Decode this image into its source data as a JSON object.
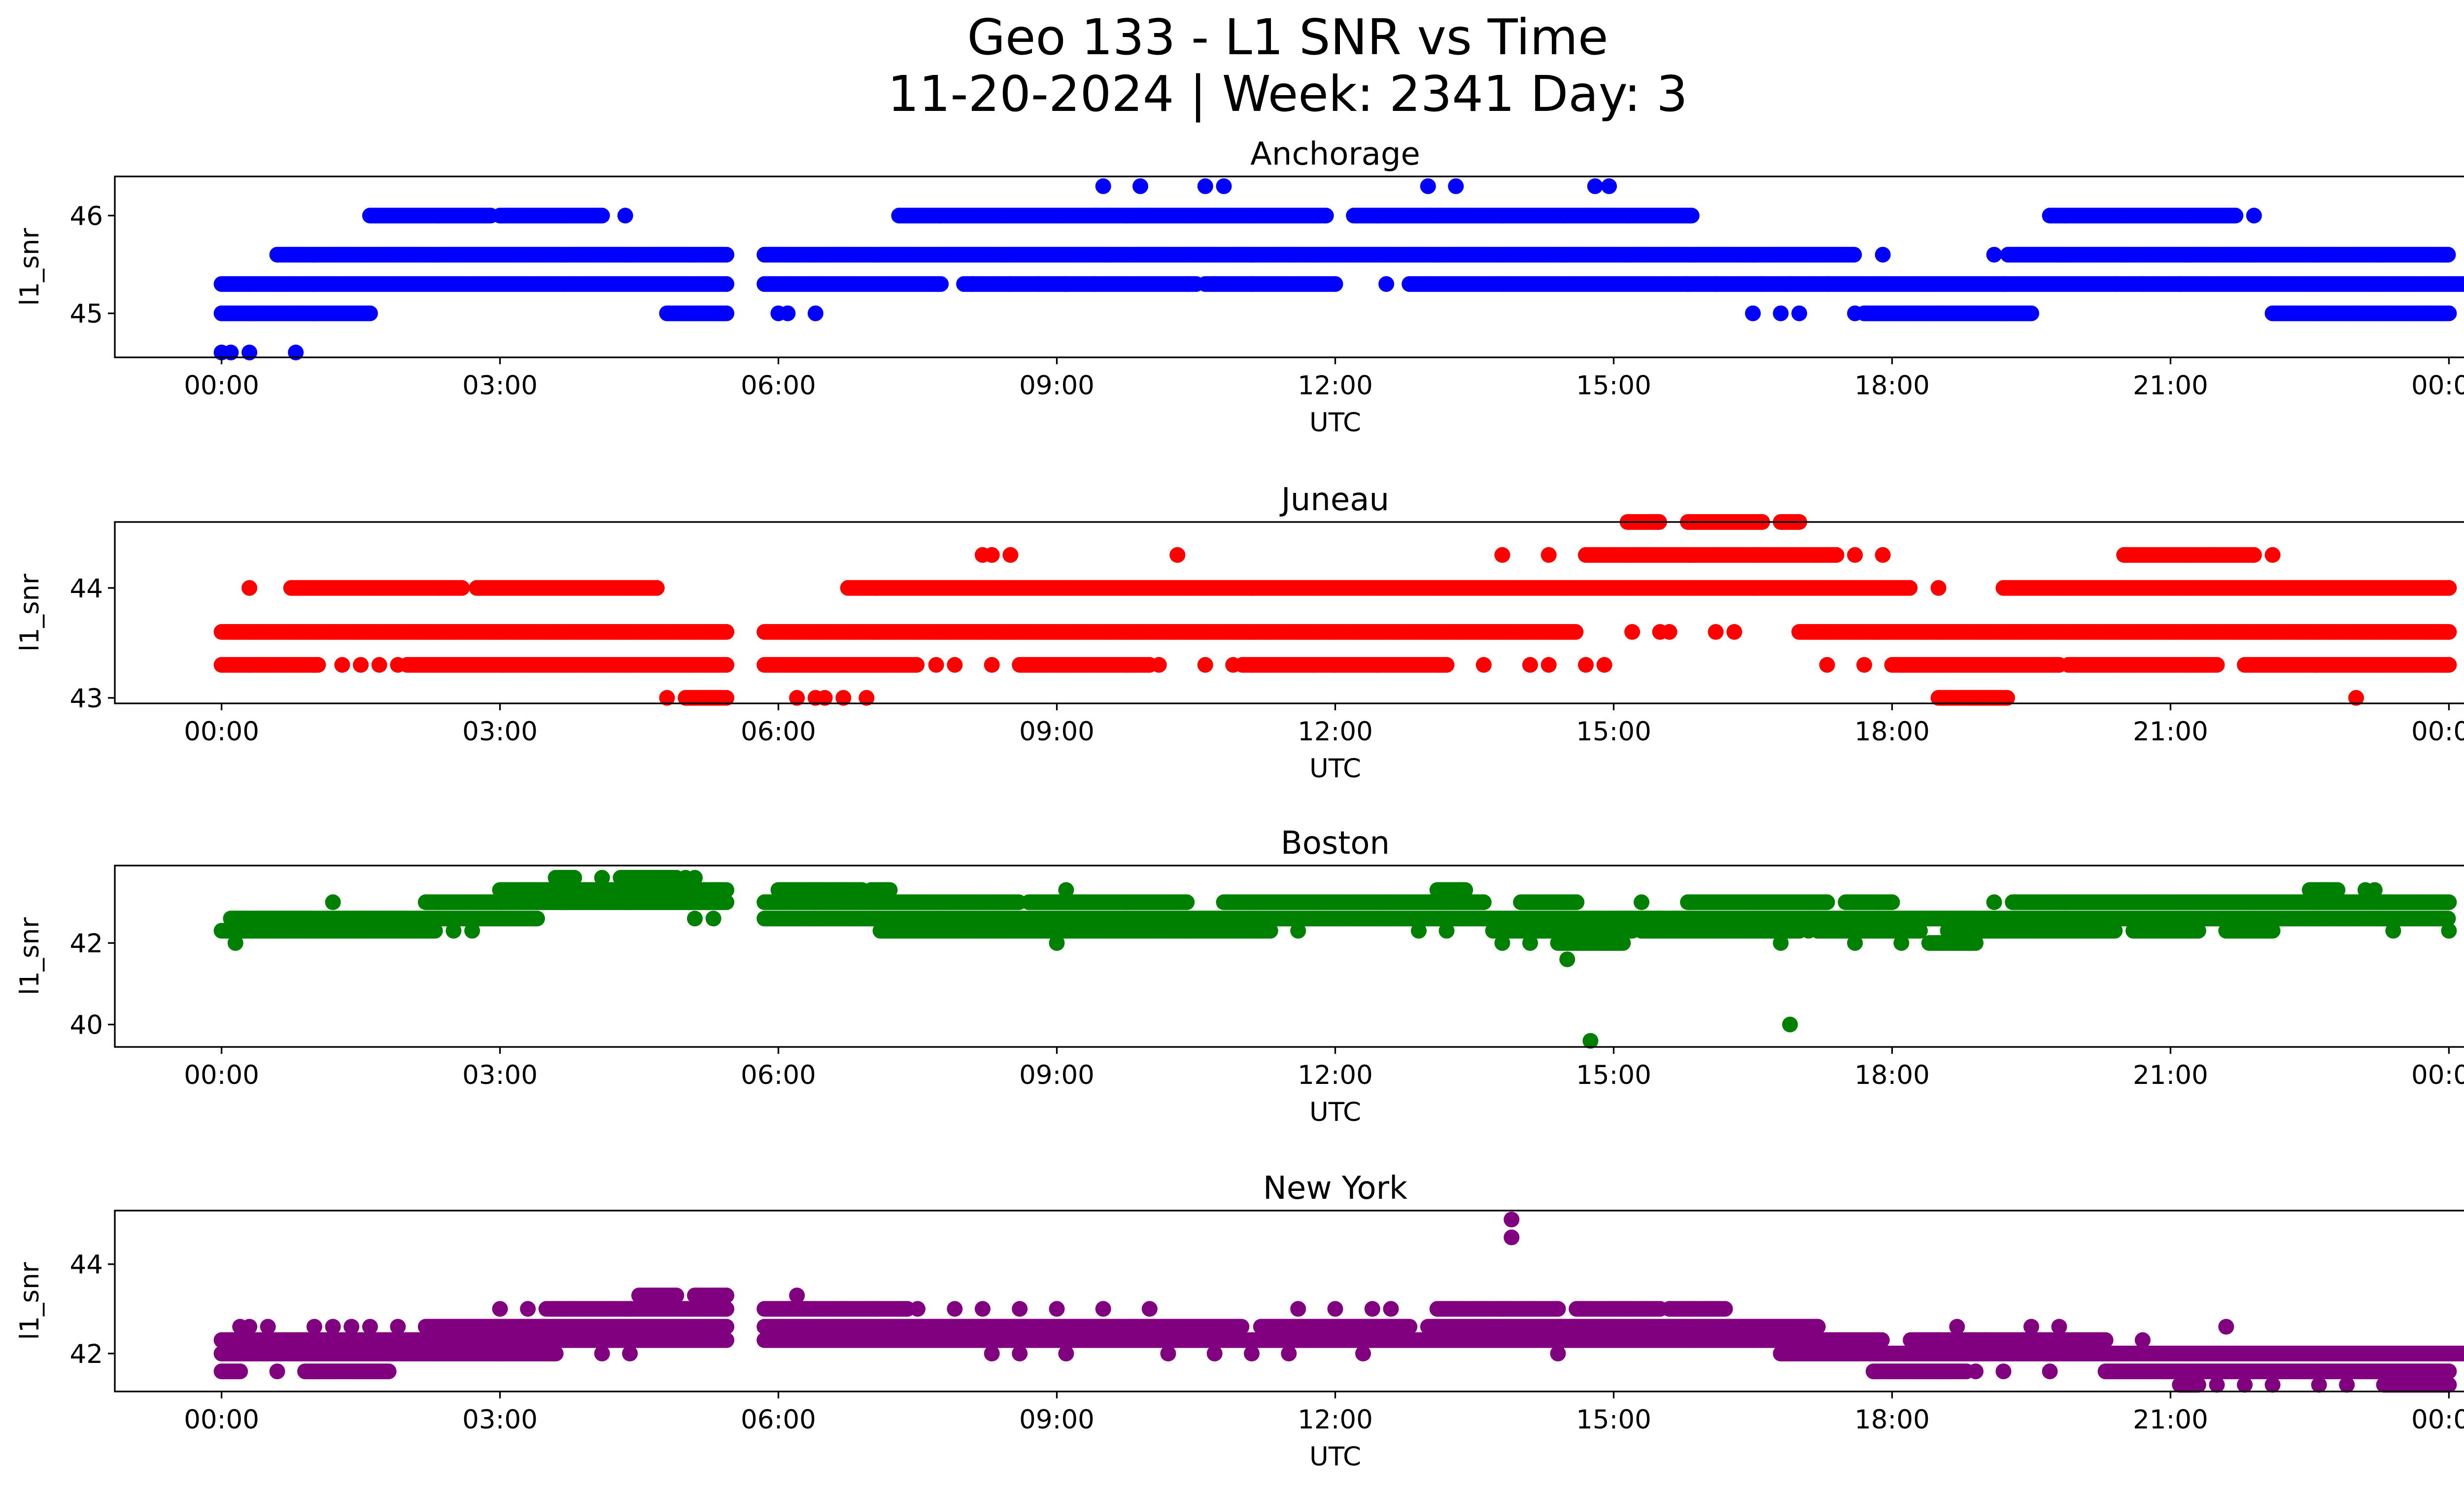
{
  "figure": {
    "title_line1": "Geo 133 - L1 SNR vs Time",
    "title_line2": "11-20-2024 | Week: 2341 Day: 3"
  },
  "chart_data": [
    {
      "type": "scatter",
      "title": "Anchorage",
      "xlabel": "UTC",
      "ylabel": "l1_snr",
      "color": "#0000ff",
      "xlim_hours": [
        -1.15,
        25.15
      ],
      "ylim": [
        44.55,
        46.4
      ],
      "xticks": [
        0,
        3,
        6,
        9,
        12,
        15,
        18,
        21,
        24
      ],
      "xtick_labels": [
        "00:00",
        "03:00",
        "06:00",
        "09:00",
        "12:00",
        "15:00",
        "18:00",
        "21:00",
        "00:00"
      ],
      "yticks": [
        45,
        46
      ],
      "ytick_labels": [
        "45",
        "46"
      ],
      "series": [
        {
          "name": "band 45.3",
          "segments": [
            [
              0.0,
              5.45
            ],
            [
              5.85,
              7.75
            ],
            [
              8.0,
              10.5
            ],
            [
              10.6,
              12.0
            ],
            [
              12.8,
              15.8
            ],
            [
              15.8,
              25.0
            ]
          ],
          "y": 45.3,
          "sparse_x": [
            8.1,
            8.5,
            8.8,
            9.1,
            9.4,
            10.4,
            10.7,
            11.1,
            12.55,
            16.1,
            16.6,
            16.9,
            17.3,
            19.2,
            20.4,
            20.7,
            21.1
          ]
        },
        {
          "name": "band 45.6",
          "segments": [
            [
              0.6,
              5.45
            ],
            [
              5.85,
              17.6
            ],
            [
              19.25,
              24.0
            ]
          ],
          "y": 45.6,
          "sparse_x": [
            17.9,
            19.1
          ]
        },
        {
          "name": "band 46.0",
          "segments": [
            [
              1.6,
              2.9
            ],
            [
              3.0,
              4.1
            ],
            [
              7.3,
              11.9
            ],
            [
              12.2,
              15.85
            ],
            [
              19.7,
              21.7
            ]
          ],
          "y": 46.0,
          "sparse_x": [
            4.35,
            21.9
          ]
        },
        {
          "name": "band 45.0",
          "segments": [
            [
              0.0,
              1.6
            ],
            [
              4.8,
              5.45
            ],
            [
              17.7,
              19.5
            ],
            [
              22.1,
              24.0
            ]
          ],
          "y": 45.0,
          "sparse_x": [
            6.0,
            6.1,
            6.4,
            16.5,
            16.8,
            17.0,
            17.6
          ]
        },
        {
          "name": "high points",
          "x": [
            9.5,
            9.9,
            10.6,
            10.8,
            13.0,
            13.3,
            14.8,
            14.95
          ],
          "y": [
            46.3,
            46.3,
            46.3,
            46.3,
            46.3,
            46.3,
            46.3,
            46.3
          ]
        },
        {
          "name": "low points",
          "x": [
            0.0,
            0.1,
            0.3,
            0.8
          ],
          "y": [
            44.6,
            44.6,
            44.6,
            44.6
          ]
        }
      ]
    },
    {
      "type": "scatter",
      "title": "Juneau",
      "xlabel": "UTC",
      "ylabel": "l1_snr",
      "color": "#ff0000",
      "xlim_hours": [
        -1.15,
        25.15
      ],
      "ylim": [
        42.95,
        44.6
      ],
      "xticks": [
        0,
        3,
        6,
        9,
        12,
        15,
        18,
        21,
        24
      ],
      "xtick_labels": [
        "00:00",
        "03:00",
        "06:00",
        "09:00",
        "12:00",
        "15:00",
        "18:00",
        "21:00",
        "00:00"
      ],
      "yticks": [
        43,
        44
      ],
      "ytick_labels": [
        "43",
        "44"
      ],
      "series": [
        {
          "name": "band 43.6",
          "segments": [
            [
              0.0,
              5.45
            ],
            [
              5.85,
              14.6
            ],
            [
              17.0,
              24.0
            ]
          ],
          "y": 43.6,
          "sparse_x": [
            15.2,
            15.5,
            15.6,
            16.1,
            16.3
          ]
        },
        {
          "name": "band 43.3",
          "segments": [
            [
              0.0,
              1.05
            ],
            [
              2.0,
              5.45
            ],
            [
              5.85,
              7.5
            ],
            [
              8.6,
              10.0
            ],
            [
              11.0,
              12.0
            ],
            [
              12.0,
              13.2
            ],
            [
              18.0,
              19.8
            ],
            [
              19.9,
              21.5
            ],
            [
              21.8,
              24.0
            ]
          ],
          "y": 43.3,
          "sparse_x": [
            1.3,
            1.5,
            1.7,
            1.9,
            7.7,
            7.9,
            8.3,
            10.1,
            10.6,
            10.9,
            13.6,
            14.1,
            14.3,
            14.7,
            14.9,
            17.3,
            17.7,
            18.1
          ]
        },
        {
          "name": "band 44.0",
          "segments": [
            [
              0.75,
              2.6
            ],
            [
              2.75,
              4.7
            ],
            [
              6.75,
              18.2
            ],
            [
              19.2,
              24.0
            ]
          ],
          "y": 44.0,
          "sparse_x": [
            0.3,
            18.5
          ]
        },
        {
          "name": "band 44.3",
          "segments": [
            [
              14.7,
              17.4
            ],
            [
              20.5,
              21.9
            ]
          ],
          "y": 44.3,
          "sparse_x": [
            8.2,
            8.3,
            8.5,
            10.3,
            13.8,
            14.3,
            17.6,
            17.9,
            22.1
          ]
        },
        {
          "name": "band 44.6",
          "segments": [
            [
              15.15,
              15.5
            ],
            [
              15.8,
              16.6
            ],
            [
              16.8,
              17.0
            ]
          ],
          "y": 44.6,
          "sparse_x": []
        },
        {
          "name": "band 43.0",
          "segments": [
            [
              5.0,
              5.45
            ],
            [
              18.5,
              19.25
            ]
          ],
          "y": 43.0,
          "sparse_x": [
            4.8,
            6.2,
            6.4,
            6.5,
            6.7,
            6.95,
            23.0
          ]
        }
      ]
    },
    {
      "type": "scatter",
      "title": "Boston",
      "xlabel": "UTC",
      "ylabel": "l1_snr",
      "color": "#008000",
      "xlim_hours": [
        -1.15,
        25.15
      ],
      "ylim": [
        39.45,
        43.9
      ],
      "xticks": [
        0,
        3,
        6,
        9,
        12,
        15,
        18,
        21,
        24
      ],
      "xtick_labels": [
        "00:00",
        "03:00",
        "06:00",
        "09:00",
        "12:00",
        "15:00",
        "18:00",
        "21:00",
        "00:00"
      ],
      "yticks": [
        40,
        42
      ],
      "ytick_labels": [
        "40",
        "42"
      ],
      "series": [
        {
          "name": "band 42.3",
          "segments": [
            [
              0.0,
              2.3
            ],
            [
              7.1,
              11.3
            ],
            [
              13.7,
              15.2
            ],
            [
              15.3,
              17.0
            ],
            [
              17.2,
              18.3
            ],
            [
              18.6,
              20.4
            ],
            [
              20.6,
              21.3
            ],
            [
              21.6,
              22.1
            ]
          ],
          "y": 42.3,
          "sparse_x": [
            2.5,
            2.7,
            11.6,
            12.9,
            13.2,
            16.9,
            17.1,
            23.4,
            24.0
          ]
        },
        {
          "name": "band 42.6",
          "segments": [
            [
              0.1,
              3.4
            ],
            [
              5.85,
              24.0
            ]
          ],
          "y": 42.6,
          "sparse_x": [
            5.1,
            5.3
          ]
        },
        {
          "name": "band 43.0",
          "segments": [
            [
              2.2,
              5.45
            ],
            [
              5.85,
              8.6
            ],
            [
              8.7,
              10.4
            ],
            [
              10.8,
              13.6
            ],
            [
              14.0,
              14.6
            ],
            [
              15.8,
              17.3
            ],
            [
              17.5,
              18.0
            ],
            [
              19.3,
              24.0
            ]
          ],
          "y": 43.0,
          "sparse_x": [
            1.2,
            15.3,
            19.1
          ]
        },
        {
          "name": "band 43.3",
          "segments": [
            [
              3.0,
              5.45
            ],
            [
              6.0,
              6.9
            ],
            [
              7.0,
              7.2
            ],
            [
              13.1,
              13.4
            ],
            [
              22.5,
              22.8
            ]
          ],
          "y": 43.3,
          "sparse_x": [
            9.1,
            23.1,
            23.2
          ]
        },
        {
          "name": "band 43.6",
          "segments": [
            [
              3.6,
              3.8
            ],
            [
              4.3,
              4.9
            ]
          ],
          "y": 43.6,
          "sparse_x": [
            4.1,
            5.0,
            5.1
          ]
        },
        {
          "name": "band 42.0",
          "segments": [
            [
              14.4,
              15.1
            ],
            [
              18.4,
              18.9
            ]
          ],
          "y": 42.0,
          "sparse_x": [
            0.15,
            9.0,
            13.8,
            14.1,
            16.8,
            17.6,
            18.1
          ]
        },
        {
          "name": "outliers",
          "x": [
            14.5,
            14.75,
            16.9
          ],
          "y": [
            41.6,
            39.6,
            40.0
          ]
        }
      ]
    },
    {
      "type": "scatter",
      "title": "New York",
      "xlabel": "UTC",
      "ylabel": "l1_snr",
      "color": "#800080",
      "xlim_hours": [
        -1.15,
        25.15
      ],
      "ylim": [
        41.15,
        45.2
      ],
      "xticks": [
        0,
        3,
        6,
        9,
        12,
        15,
        18,
        21,
        24
      ],
      "xtick_labels": [
        "00:00",
        "03:00",
        "06:00",
        "09:00",
        "12:00",
        "15:00",
        "18:00",
        "21:00",
        "00:00"
      ],
      "yticks": [
        42,
        44
      ],
      "ytick_labels": [
        "42",
        "44"
      ],
      "series": [
        {
          "name": "band 42.0",
          "segments": [
            [
              0.0,
              3.6
            ],
            [
              16.8,
              25.0
            ]
          ],
          "y": 42.0,
          "sparse_x": [
            4.1,
            4.4,
            8.3,
            8.6,
            9.1,
            10.2,
            10.7,
            11.1,
            11.5,
            12.3,
            14.4
          ]
        },
        {
          "name": "band 42.3",
          "segments": [
            [
              0.0,
              5.45
            ],
            [
              5.85,
              17.9
            ],
            [
              18.2,
              20.3
            ]
          ],
          "y": 42.3,
          "sparse_x": [
            18.5,
            19.0,
            19.4,
            20.7
          ]
        },
        {
          "name": "band 42.6",
          "segments": [
            [
              2.2,
              5.45
            ],
            [
              5.85,
              11.0
            ],
            [
              11.2,
              12.8
            ],
            [
              13.0,
              17.2
            ]
          ],
          "y": 42.6,
          "sparse_x": [
            0.2,
            0.3,
            0.5,
            1.0,
            1.2,
            1.4,
            1.6,
            1.9,
            18.7,
            19.5,
            19.8,
            21.6
          ]
        },
        {
          "name": "band 43.0",
          "segments": [
            [
              3.5,
              5.45
            ],
            [
              5.85,
              7.4
            ],
            [
              13.1,
              14.4
            ],
            [
              14.6,
              15.5
            ],
            [
              15.6,
              16.2
            ]
          ],
          "y": 43.0,
          "sparse_x": [
            3.0,
            3.3,
            7.5,
            7.9,
            8.2,
            8.6,
            9.0,
            9.5,
            10.0,
            11.6,
            12.0,
            12.4,
            12.6
          ]
        },
        {
          "name": "band 43.3",
          "segments": [
            [
              4.5,
              4.9
            ],
            [
              5.1,
              5.45
            ]
          ],
          "y": 43.3,
          "sparse_x": [
            6.2
          ]
        },
        {
          "name": "band 41.6",
          "segments": [
            [
              0.0,
              0.2
            ],
            [
              0.9,
              1.8
            ],
            [
              17.8,
              18.8
            ],
            [
              20.3,
              24.0
            ]
          ],
          "y": 41.6,
          "sparse_x": [
            0.6,
            18.9,
            19.2,
            19.7
          ]
        },
        {
          "name": "band 41.3",
          "segments": [
            [
              21.1,
              21.3
            ],
            [
              23.3,
              24.0
            ]
          ],
          "y": 41.3,
          "sparse_x": [
            21.5,
            21.8,
            22.1,
            22.6,
            22.9
          ]
        },
        {
          "name": "outliers",
          "x": [
            13.9,
            13.9
          ],
          "y": [
            45.0,
            44.6
          ]
        }
      ]
    }
  ]
}
